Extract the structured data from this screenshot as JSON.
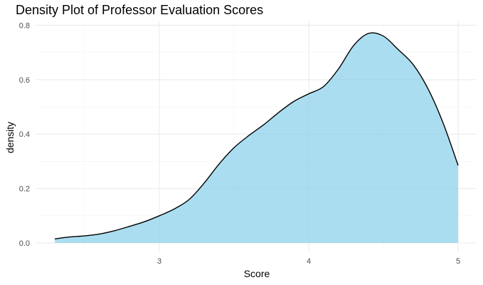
{
  "chart_data": {
    "type": "area",
    "title": "Density Plot of Professor Evaluation Scores",
    "xlabel": "Score",
    "ylabel": "density",
    "xlim": [
      2.3,
      5.0
    ],
    "ylim": [
      0,
      0.8
    ],
    "x_ticks": [
      3,
      4,
      5
    ],
    "x_tick_labels": [
      "3",
      "4",
      "5"
    ],
    "y_ticks": [
      0,
      0.2,
      0.4,
      0.6,
      0.8
    ],
    "y_tick_labels": [
      "0.0",
      "0.2",
      "0.4",
      "0.6",
      "0.8"
    ],
    "grid": true,
    "legend": "none",
    "fill_color": "#87CEEB",
    "line_color": "#000000",
    "series": [
      {
        "x": [
          2.3,
          2.4,
          2.5,
          2.6,
          2.7,
          2.8,
          2.9,
          3.0,
          3.1,
          3.2,
          3.3,
          3.4,
          3.5,
          3.6,
          3.7,
          3.8,
          3.9,
          4.0,
          4.1,
          4.2,
          4.3,
          4.4,
          4.5,
          4.6,
          4.7,
          4.8,
          4.9,
          5.0
        ],
        "y": [
          0.015,
          0.022,
          0.026,
          0.033,
          0.045,
          0.061,
          0.078,
          0.1,
          0.125,
          0.16,
          0.22,
          0.29,
          0.35,
          0.395,
          0.435,
          0.48,
          0.52,
          0.548,
          0.575,
          0.64,
          0.725,
          0.77,
          0.76,
          0.71,
          0.655,
          0.565,
          0.44,
          0.285
        ]
      }
    ]
  }
}
